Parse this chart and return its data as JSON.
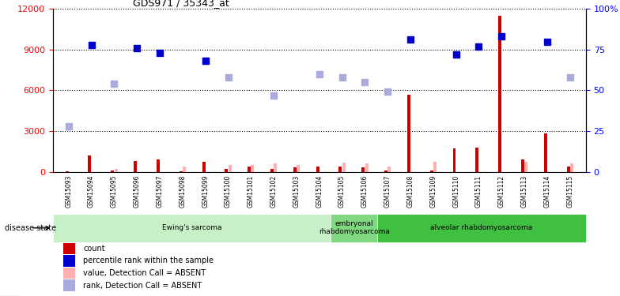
{
  "title": "GDS971 / 35343_at",
  "samples": [
    "GSM15093",
    "GSM15094",
    "GSM15095",
    "GSM15096",
    "GSM15097",
    "GSM15098",
    "GSM15099",
    "GSM15100",
    "GSM15101",
    "GSM15102",
    "GSM15103",
    "GSM15104",
    "GSM15105",
    "GSM15106",
    "GSM15107",
    "GSM15108",
    "GSM15109",
    "GSM15110",
    "GSM15111",
    "GSM15112",
    "GSM15113",
    "GSM15114",
    "GSM15115"
  ],
  "count_red": [
    50,
    1200,
    100,
    800,
    900,
    50,
    750,
    200,
    350,
    200,
    300,
    400,
    350,
    300,
    80,
    5700,
    80,
    1700,
    1800,
    11500,
    900,
    2800,
    400
  ],
  "percentile_blue_pct": [
    null,
    78,
    null,
    76,
    73,
    null,
    68,
    null,
    null,
    null,
    null,
    null,
    null,
    null,
    null,
    81,
    null,
    72,
    77,
    83,
    null,
    80,
    null
  ],
  "value_absent_pink": [
    null,
    null,
    200,
    null,
    null,
    400,
    null,
    500,
    500,
    600,
    500,
    null,
    650,
    600,
    400,
    null,
    700,
    null,
    null,
    null,
    700,
    null,
    600
  ],
  "rank_absent_lightblue_pct": [
    28,
    null,
    54,
    null,
    null,
    null,
    68,
    58,
    null,
    47,
    null,
    60,
    58,
    55,
    49,
    null,
    null,
    72,
    null,
    null,
    null,
    null,
    58
  ],
  "disease_groups": [
    {
      "label": "Ewing's sarcoma",
      "start": 0,
      "end": 12,
      "color": "#c8f0c8"
    },
    {
      "label": "embryonal\nrhabdomyosarcoma",
      "start": 12,
      "end": 14,
      "color": "#80d880"
    },
    {
      "label": "alveolar rhabdomyosarcoma",
      "start": 14,
      "end": 23,
      "color": "#40c040"
    }
  ],
  "ylim_left": [
    0,
    12000
  ],
  "ylim_right": [
    0,
    100
  ],
  "yticks_left": [
    0,
    3000,
    6000,
    9000,
    12000
  ],
  "ytick_labels_right": [
    "0",
    "25",
    "50",
    "75",
    "100%"
  ],
  "plot_bg": "#ffffff",
  "xtick_bg": "#d0d0d0",
  "marker_size": 6
}
